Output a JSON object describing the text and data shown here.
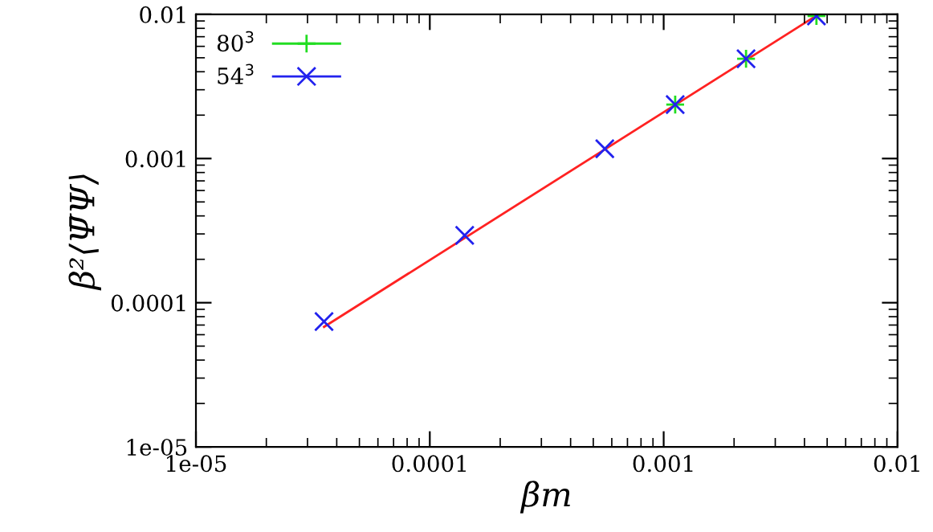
{
  "chart_data": {
    "type": "scatter",
    "xlabel": "βm",
    "ylabel": "β²⟨Ψ̄Ψ⟩",
    "log": "xy",
    "xlim": [
      1e-05,
      0.01
    ],
    "ylim": [
      1e-05,
      0.01
    ],
    "xticks": [
      {
        "value": 1e-05,
        "label": "1e-05"
      },
      {
        "value": 0.0001,
        "label": "0.0001"
      },
      {
        "value": 0.001,
        "label": "0.001"
      },
      {
        "value": 0.01,
        "label": "0.01"
      }
    ],
    "yticks": [
      {
        "value": 1e-05,
        "label": "1e-05"
      },
      {
        "value": 0.0001,
        "label": "0.0001"
      },
      {
        "value": 0.001,
        "label": "0.001"
      },
      {
        "value": 0.01,
        "label": "0.01"
      }
    ],
    "grid": false,
    "legend": "top left",
    "series": [
      {
        "name": "80$^{3}$",
        "color": "#22dd22",
        "marker": "plus",
        "x": [
          0.00112,
          0.00225,
          0.0045
        ],
        "values": [
          0.00237,
          0.00492,
          0.00975
        ]
      },
      {
        "name": "54$^{3}$",
        "color": "#2222ee",
        "marker": "cross",
        "x": [
          3.53e-05,
          0.000141,
          0.00056,
          0.00112,
          0.00225,
          0.0045
        ],
        "values": [
          7.4e-05,
          0.000293,
          0.00117,
          0.00237,
          0.00492,
          0.00975
        ]
      },
      {
        "type": "line",
        "color": "#ff2222",
        "x": [
          3.53e-05,
          0.0045
        ],
        "values": [
          6.8e-05,
          0.0098
        ]
      }
    ]
  }
}
